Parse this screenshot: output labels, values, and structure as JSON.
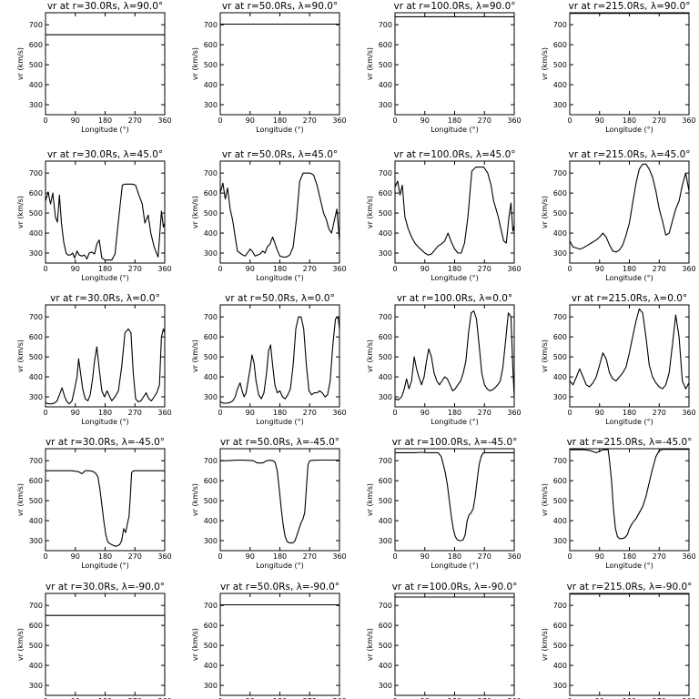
{
  "chart_data": {
    "type": "line",
    "panel_grid": {
      "rows": 5,
      "cols": 4
    },
    "xlabel": "Longitude (°)",
    "ylabel": "vr (km/s)",
    "xlim": [
      0,
      360
    ],
    "ylim": [
      250,
      760
    ],
    "xticks": [
      0,
      90,
      180,
      270,
      360
    ],
    "yticks": [
      300,
      400,
      500,
      600,
      700
    ],
    "grid": false,
    "panels": [
      {
        "row": 0,
        "col": 0,
        "title": "vr at r=30.0Rs, λ=90.0°",
        "x": [
          0,
          360
        ],
        "y": [
          650,
          650
        ]
      },
      {
        "row": 0,
        "col": 1,
        "title": "vr at r=50.0Rs, λ=90.0°",
        "x": [
          0,
          360
        ],
        "y": [
          703,
          703
        ]
      },
      {
        "row": 0,
        "col": 2,
        "title": "vr at r=100.0Rs, λ=90.0°",
        "x": [
          0,
          360
        ],
        "y": [
          740,
          740
        ]
      },
      {
        "row": 0,
        "col": 3,
        "title": "vr at r=215.0Rs, λ=90.0°",
        "x": [
          0,
          360
        ],
        "y": [
          757,
          757
        ]
      },
      {
        "row": 1,
        "col": 0,
        "title": "vr at r=30.0Rs, λ=45.0°",
        "x": [
          0,
          8,
          15,
          22,
          30,
          36,
          42,
          48,
          55,
          62,
          68,
          75,
          82,
          88,
          95,
          102,
          110,
          118,
          125,
          132,
          140,
          148,
          155,
          162,
          170,
          180,
          190,
          200,
          210,
          220,
          232,
          240,
          250,
          262,
          272,
          282,
          292,
          300,
          310,
          318,
          328,
          340,
          350,
          356,
          360
        ],
        "y": [
          560,
          605,
          545,
          600,
          480,
          455,
          590,
          450,
          355,
          300,
          290,
          290,
          300,
          275,
          310,
          290,
          285,
          290,
          270,
          300,
          305,
          295,
          345,
          365,
          275,
          265,
          265,
          265,
          295,
          460,
          640,
          645,
          645,
          645,
          640,
          590,
          545,
          450,
          490,
          400,
          330,
          280,
          510,
          430,
          450
        ]
      },
      {
        "row": 1,
        "col": 1,
        "title": "vr at r=50.0Rs, λ=45.0°",
        "x": [
          0,
          8,
          15,
          22,
          30,
          38,
          45,
          52,
          60,
          68,
          75,
          82,
          90,
          98,
          105,
          112,
          120,
          128,
          135,
          142,
          150,
          158,
          165,
          172,
          180,
          190,
          200,
          210,
          220,
          230,
          240,
          250,
          262,
          272,
          282,
          292,
          302,
          312,
          320,
          328,
          336,
          344,
          352,
          360
        ],
        "y": [
          600,
          650,
          570,
          625,
          520,
          460,
          380,
          310,
          300,
          290,
          285,
          300,
          320,
          305,
          285,
          290,
          295,
          310,
          300,
          330,
          345,
          380,
          350,
          315,
          285,
          280,
          280,
          290,
          330,
          470,
          660,
          700,
          700,
          700,
          690,
          640,
          570,
          500,
          470,
          420,
          400,
          460,
          520,
          360
        ]
      },
      {
        "row": 1,
        "col": 2,
        "title": "vr at r=100.0Rs, λ=45.0°",
        "x": [
          0,
          8,
          15,
          22,
          30,
          40,
          50,
          60,
          70,
          80,
          90,
          100,
          110,
          120,
          130,
          140,
          150,
          160,
          170,
          180,
          190,
          200,
          210,
          220,
          232,
          244,
          256,
          268,
          280,
          290,
          298,
          305,
          312,
          320,
          328,
          336,
          344,
          350,
          356,
          360
        ],
        "y": [
          630,
          660,
          590,
          640,
          480,
          420,
          380,
          350,
          330,
          315,
          300,
          290,
          295,
          315,
          335,
          345,
          360,
          400,
          355,
          320,
          300,
          300,
          350,
          480,
          710,
          730,
          730,
          730,
          700,
          640,
          560,
          520,
          480,
          420,
          360,
          350,
          480,
          550,
          410,
          440
        ]
      },
      {
        "row": 1,
        "col": 3,
        "title": "vr at r=215.0Rs, λ=45.0°",
        "x": [
          0,
          10,
          20,
          30,
          40,
          50,
          60,
          70,
          80,
          90,
          100,
          110,
          120,
          130,
          140,
          150,
          160,
          170,
          180,
          190,
          200,
          210,
          220,
          230,
          240,
          250,
          260,
          270,
          280,
          290,
          300,
          310,
          320,
          330,
          340,
          350,
          360
        ],
        "y": [
          360,
          330,
          325,
          320,
          325,
          335,
          345,
          355,
          365,
          380,
          400,
          380,
          340,
          310,
          305,
          315,
          340,
          390,
          450,
          550,
          650,
          720,
          745,
          745,
          720,
          680,
          610,
          520,
          460,
          390,
          400,
          460,
          520,
          560,
          640,
          700,
          610
        ]
      },
      {
        "row": 2,
        "col": 0,
        "title": "vr at r=30.0Rs, λ=0.0°",
        "x": [
          0,
          10,
          20,
          28,
          35,
          42,
          50,
          58,
          65,
          72,
          80,
          88,
          95,
          100,
          105,
          112,
          120,
          128,
          135,
          142,
          148,
          155,
          162,
          170,
          178,
          186,
          194,
          200,
          210,
          220,
          230,
          240,
          250,
          258,
          265,
          272,
          280,
          288,
          296,
          304,
          312,
          320,
          328,
          336,
          344,
          350,
          356,
          360
        ],
        "y": [
          270,
          265,
          265,
          270,
          280,
          310,
          345,
          300,
          275,
          265,
          280,
          340,
          400,
          490,
          430,
          340,
          290,
          280,
          310,
          390,
          480,
          550,
          440,
          330,
          300,
          330,
          300,
          280,
          300,
          330,
          450,
          620,
          640,
          620,
          420,
          290,
          275,
          280,
          300,
          320,
          290,
          280,
          300,
          320,
          360,
          600,
          640,
          620
        ]
      },
      {
        "row": 2,
        "col": 1,
        "title": "vr at r=50.0Rs, λ=0.0°",
        "x": [
          0,
          10,
          20,
          30,
          38,
          45,
          52,
          60,
          66,
          72,
          78,
          84,
          90,
          96,
          102,
          108,
          116,
          124,
          132,
          140,
          146,
          152,
          158,
          165,
          172,
          180,
          188,
          196,
          204,
          212,
          220,
          228,
          236,
          244,
          252,
          260,
          268,
          276,
          284,
          292,
          300,
          308,
          316,
          324,
          332,
          340,
          348,
          356,
          360
        ],
        "y": [
          275,
          268,
          268,
          272,
          280,
          300,
          340,
          370,
          330,
          300,
          320,
          380,
          440,
          510,
          470,
          380,
          310,
          290,
          320,
          420,
          530,
          560,
          460,
          360,
          320,
          330,
          300,
          290,
          310,
          340,
          460,
          640,
          700,
          700,
          640,
          460,
          330,
          310,
          320,
          320,
          330,
          320,
          300,
          310,
          380,
          560,
          690,
          700,
          640
        ]
      },
      {
        "row": 2,
        "col": 2,
        "title": "vr at r=100.0Rs, λ=0.0°",
        "x": [
          0,
          10,
          20,
          28,
          35,
          42,
          50,
          58,
          65,
          72,
          80,
          88,
          95,
          102,
          110,
          118,
          126,
          134,
          142,
          150,
          158,
          166,
          174,
          182,
          190,
          198,
          206,
          214,
          222,
          230,
          238,
          246,
          254,
          262,
          270,
          278,
          286,
          294,
          302,
          310,
          318,
          326,
          334,
          342,
          350,
          356,
          360
        ],
        "y": [
          290,
          285,
          300,
          340,
          390,
          340,
          380,
          500,
          440,
          400,
          360,
          400,
          480,
          540,
          500,
          420,
          380,
          360,
          380,
          400,
          390,
          360,
          330,
          340,
          360,
          380,
          420,
          480,
          620,
          720,
          730,
          690,
          560,
          420,
          360,
          340,
          330,
          335,
          345,
          360,
          380,
          450,
          580,
          720,
          700,
          440,
          300
        ]
      },
      {
        "row": 2,
        "col": 3,
        "title": "vr at r=215.0Rs, λ=0.0°",
        "x": [
          0,
          10,
          20,
          30,
          40,
          50,
          60,
          70,
          80,
          90,
          100,
          110,
          120,
          130,
          140,
          150,
          160,
          170,
          180,
          190,
          200,
          210,
          220,
          230,
          240,
          250,
          260,
          270,
          280,
          290,
          300,
          310,
          320,
          330,
          340,
          350,
          360
        ],
        "y": [
          380,
          360,
          400,
          440,
          400,
          360,
          350,
          370,
          400,
          460,
          520,
          490,
          420,
          390,
          380,
          400,
          420,
          450,
          520,
          600,
          680,
          740,
          720,
          600,
          460,
          400,
          370,
          350,
          340,
          360,
          420,
          560,
          710,
          600,
          380,
          340,
          370
        ]
      },
      {
        "row": 3,
        "col": 0,
        "title": "vr at r=30.0Rs, λ=-45.0°",
        "x": [
          0,
          20,
          40,
          60,
          80,
          100,
          110,
          120,
          130,
          140,
          150,
          158,
          164,
          170,
          176,
          182,
          188,
          194,
          200,
          206,
          212,
          218,
          224,
          230,
          236,
          242,
          248,
          252,
          256,
          260,
          264,
          270,
          290,
          320,
          360
        ],
        "y": [
          650,
          650,
          650,
          650,
          650,
          645,
          635,
          650,
          650,
          648,
          640,
          620,
          560,
          480,
          400,
          330,
          295,
          285,
          280,
          275,
          272,
          275,
          280,
          300,
          360,
          340,
          390,
          420,
          520,
          640,
          648,
          650,
          650,
          650,
          650
        ]
      },
      {
        "row": 3,
        "col": 1,
        "title": "vr at r=50.0Rs, λ=-45.0°",
        "x": [
          0,
          20,
          40,
          60,
          80,
          100,
          110,
          120,
          130,
          140,
          150,
          160,
          166,
          172,
          178,
          184,
          190,
          196,
          202,
          208,
          214,
          220,
          226,
          232,
          238,
          244,
          250,
          255,
          260,
          265,
          270,
          280,
          300,
          330,
          360
        ],
        "y": [
          700,
          700,
          702,
          703,
          702,
          700,
          690,
          688,
          690,
          700,
          702,
          700,
          690,
          650,
          560,
          460,
          380,
          320,
          295,
          290,
          288,
          290,
          300,
          330,
          360,
          390,
          410,
          440,
          560,
          680,
          700,
          702,
          703,
          703,
          703
        ]
      },
      {
        "row": 3,
        "col": 2,
        "title": "vr at r=100.0Rs, λ=-45.0°",
        "x": [
          0,
          20,
          40,
          60,
          80,
          100,
          120,
          130,
          140,
          146,
          152,
          158,
          164,
          170,
          176,
          182,
          188,
          194,
          200,
          206,
          212,
          218,
          224,
          230,
          236,
          242,
          248,
          254,
          260,
          266,
          272,
          280,
          300,
          330,
          360
        ],
        "y": [
          740,
          740,
          740,
          740,
          742,
          740,
          740,
          740,
          720,
          680,
          640,
          580,
          500,
          420,
          360,
          320,
          305,
          300,
          300,
          305,
          330,
          400,
          430,
          440,
          460,
          520,
          600,
          680,
          720,
          738,
          740,
          740,
          740,
          740,
          740
        ]
      },
      {
        "row": 3,
        "col": 3,
        "title": "vr at r=215.0Rs, λ=-45.0°",
        "x": [
          0,
          20,
          40,
          60,
          80,
          100,
          110,
          116,
          120,
          126,
          132,
          138,
          144,
          150,
          156,
          162,
          168,
          174,
          180,
          190,
          200,
          210,
          220,
          230,
          240,
          250,
          260,
          270,
          280,
          300,
          330,
          360
        ],
        "y": [
          755,
          755,
          755,
          752,
          740,
          755,
          755,
          755,
          700,
          600,
          460,
          360,
          320,
          310,
          310,
          312,
          318,
          330,
          360,
          390,
          410,
          440,
          470,
          520,
          590,
          660,
          720,
          750,
          757,
          757,
          757,
          757
        ]
      },
      {
        "row": 4,
        "col": 0,
        "title": "vr at r=30.0Rs, λ=-90.0°",
        "x": [
          0,
          360
        ],
        "y": [
          650,
          650
        ]
      },
      {
        "row": 4,
        "col": 1,
        "title": "vr at r=50.0Rs, λ=-90.0°",
        "x": [
          0,
          360
        ],
        "y": [
          703,
          703
        ]
      },
      {
        "row": 4,
        "col": 2,
        "title": "vr at r=100.0Rs, λ=-90.0°",
        "x": [
          0,
          360
        ],
        "y": [
          742,
          742
        ]
      },
      {
        "row": 4,
        "col": 3,
        "title": "vr at r=215.0Rs, λ=-90.0°",
        "x": [
          0,
          360
        ],
        "y": [
          757,
          757
        ]
      }
    ]
  }
}
